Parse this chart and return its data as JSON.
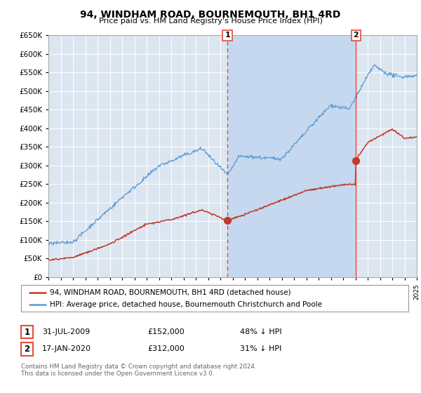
{
  "title": "94, WINDHAM ROAD, BOURNEMOUTH, BH1 4RD",
  "subtitle": "Price paid vs. HM Land Registry's House Price Index (HPI)",
  "ylim": [
    0,
    650000
  ],
  "yticks": [
    0,
    50000,
    100000,
    150000,
    200000,
    250000,
    300000,
    350000,
    400000,
    450000,
    500000,
    550000,
    600000,
    650000
  ],
  "background_color": "#ffffff",
  "plot_bg_color": "#dce6f1",
  "grid_color": "#ffffff",
  "shade_color": "#c5d8ef",
  "red_line_color": "#c0392b",
  "blue_line_color": "#5b9bd5",
  "dashed_red_color": "#e74c3c",
  "marker1_date_x": 2009.58,
  "marker2_date_x": 2020.04,
  "marker1_y": 152000,
  "marker2_y": 312000,
  "legend_red": "94, WINDHAM ROAD, BOURNEMOUTH, BH1 4RD (detached house)",
  "legend_blue": "HPI: Average price, detached house, Bournemouth Christchurch and Poole",
  "table_row1": [
    "1",
    "31-JUL-2009",
    "£152,000",
    "48% ↓ HPI"
  ],
  "table_row2": [
    "2",
    "17-JAN-2020",
    "£312,000",
    "31% ↓ HPI"
  ],
  "footnote": "Contains HM Land Registry data © Crown copyright and database right 2024.\nThis data is licensed under the Open Government Licence v3.0.",
  "xmin": 1995,
  "xmax": 2025
}
